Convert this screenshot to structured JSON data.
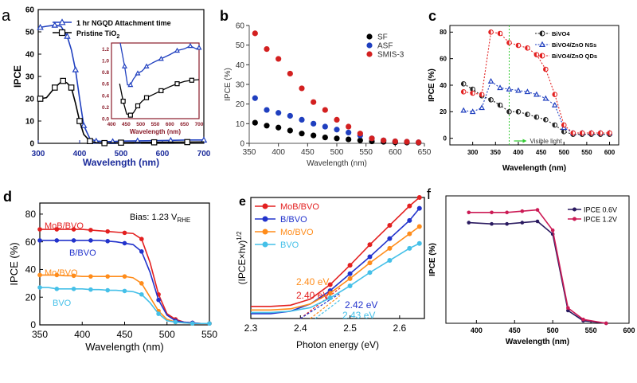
{
  "chart_data": [
    {
      "panel": "a",
      "type": "line",
      "xlabel": "Wavelength (nm)",
      "ylabel": "IPCE",
      "xlim": [
        300,
        700
      ],
      "ylim": [
        0,
        60
      ],
      "xticks": [
        "300",
        "400",
        "500",
        "600",
        "700"
      ],
      "yticks": [
        "0",
        "10",
        "20",
        "30",
        "40",
        "50",
        "60"
      ],
      "legend": "top-right",
      "colors": {
        "series0": "#1f3fbf",
        "series1": "#000000"
      },
      "series": [
        {
          "name": "1 hr NGQD Attachment time",
          "x": [
            305,
            320,
            340,
            355,
            370,
            380,
            390,
            400,
            410,
            425,
            440,
            460,
            480,
            500,
            540,
            580,
            620,
            660,
            700
          ],
          "y": [
            52,
            52.5,
            53,
            52.5,
            48,
            42,
            33,
            20,
            8,
            2,
            1,
            0.8,
            0.8,
            1,
            1.1,
            1.2,
            1.3,
            1.5,
            1.5
          ]
        },
        {
          "name": "Pristine TiO",
          "x": [
            305,
            320,
            340,
            355,
            360,
            370,
            380,
            390,
            400,
            410,
            425,
            440,
            460,
            480,
            500,
            540,
            580,
            620,
            660,
            700
          ],
          "y": [
            20,
            20.5,
            25,
            27.5,
            28,
            27,
            25,
            18,
            10,
            4,
            1,
            0.3,
            0.1,
            0.2,
            0.3,
            0.4,
            0.45,
            0.5,
            0.55,
            0.6
          ]
        }
      ],
      "inset": {
        "xlabel": "Wavelength (nm)",
        "xlim": [
          400,
          700
        ],
        "ylim": [
          0,
          1.3
        ],
        "xticks": [
          "400",
          "450",
          "500",
          "550",
          "600",
          "650",
          "700"
        ],
        "yticks": [
          "0.0",
          "0.2",
          "0.4",
          "0.6",
          "0.8",
          "1.0",
          "1.2"
        ],
        "series": [
          {
            "name": "1 hr NGQD Attachment time",
            "x": [
              430,
              445,
              455,
              465,
              475,
              490,
              505,
              520,
              545,
              570,
              600,
              625,
              650,
              670,
              690,
              700
            ],
            "y": [
              1.3,
              0.9,
              0.58,
              0.58,
              0.68,
              0.78,
              0.82,
              0.9,
              0.97,
              1.03,
              1.1,
              1.17,
              1.2,
              1.25,
              1.2,
              1.22
            ]
          },
          {
            "name": "Pristine TiO",
            "x": [
              428,
              440,
              452,
              465,
              475,
              490,
              505,
              520,
              545,
              570,
              600,
              625,
              650,
              675,
              700
            ],
            "y": [
              0.6,
              0.3,
              0.08,
              0.06,
              0.1,
              0.22,
              0.3,
              0.36,
              0.42,
              0.48,
              0.55,
              0.6,
              0.64,
              0.66,
              0.67
            ]
          }
        ]
      }
    },
    {
      "panel": "b",
      "type": "scatter",
      "xlabel": "Wavelength (nm)",
      "ylabel": "IPCE (%)",
      "xlim": [
        350,
        650
      ],
      "ylim": [
        0,
        60
      ],
      "xticks": [
        "350",
        "400",
        "450",
        "500",
        "550",
        "600",
        "650"
      ],
      "yticks": [
        "0",
        "10",
        "20",
        "30",
        "40",
        "50",
        "60"
      ],
      "legend": "top-right",
      "colors": {
        "SF": "#000000",
        "ASF": "#1f3fbf",
        "SMIS-3": "#d32020"
      },
      "series": [
        {
          "name": "SF",
          "x": [
            360,
            380,
            400,
            420,
            440,
            460,
            480,
            500,
            520,
            540,
            560,
            580,
            600,
            620,
            640
          ],
          "y": [
            10.5,
            9,
            8,
            6.5,
            5,
            4,
            3,
            2.5,
            2,
            1.5,
            1,
            0.8,
            0.5,
            0.4,
            0.3
          ]
        },
        {
          "name": "ASF",
          "x": [
            360,
            380,
            400,
            420,
            440,
            460,
            480,
            500,
            520,
            540,
            560,
            580,
            600,
            620,
            640
          ],
          "y": [
            23,
            17,
            15.5,
            14,
            12,
            10,
            8.5,
            7,
            5.5,
            4,
            2.5,
            1.5,
            1,
            0.8,
            0.5
          ]
        },
        {
          "name": "SMIS-3",
          "x": [
            360,
            380,
            400,
            420,
            440,
            460,
            480,
            500,
            520,
            540,
            560,
            580,
            600,
            620,
            640
          ],
          "y": [
            56,
            48,
            43,
            35.5,
            28,
            21,
            17,
            12,
            8.5,
            5,
            2.5,
            1.5,
            1,
            0.8,
            0.5
          ]
        }
      ]
    },
    {
      "panel": "c",
      "type": "line",
      "xlabel": "Wavelength (nm)",
      "ylabel": "IPCE (%)",
      "xlim": [
        250,
        620
      ],
      "ylim": [
        -5,
        85
      ],
      "xticks": [
        "300",
        "350",
        "400",
        "450",
        "500",
        "550",
        "600"
      ],
      "yticks": [
        "0",
        "20",
        "40",
        "60",
        "80"
      ],
      "annotation": "Visible light",
      "colors": {
        "BiVO4": "#222222",
        "ZnO NSs": "#1f3fbf",
        "ZnO QDs": "#e32020",
        "visible": "#33cc33"
      },
      "series": [
        {
          "name": "BiVO4",
          "x": [
            280,
            300,
            320,
            340,
            360,
            380,
            400,
            420,
            440,
            460,
            480,
            500,
            520,
            540,
            560,
            580,
            600
          ],
          "y": [
            41,
            37,
            32,
            29,
            25,
            20,
            20,
            18,
            16,
            14,
            10,
            5,
            3,
            3,
            3,
            3,
            3
          ]
        },
        {
          "name": "BiVO4/ZnO NSs",
          "x": [
            280,
            300,
            320,
            340,
            360,
            380,
            400,
            420,
            440,
            460,
            480,
            500,
            520,
            540,
            560,
            580,
            600
          ],
          "y": [
            21,
            20,
            23,
            43,
            38,
            37,
            36,
            35,
            33,
            30,
            25,
            8,
            4,
            4,
            4,
            4,
            4
          ]
        },
        {
          "name": "BiVO4/ZnO QDs",
          "x": [
            280,
            300,
            320,
            340,
            360,
            380,
            400,
            420,
            440,
            460,
            480,
            500,
            520,
            540,
            560,
            580,
            600
          ],
          "y": [
            35,
            34,
            33,
            80,
            79,
            72,
            70,
            68,
            63,
            52,
            33,
            10,
            4,
            4,
            4,
            4,
            4
          ]
        }
      ]
    },
    {
      "panel": "d",
      "type": "line",
      "xlabel": "Wavelength (nm)",
      "ylabel": "IPCE (%)",
      "xlim": [
        350,
        550
      ],
      "ylim": [
        0,
        88
      ],
      "xticks": [
        "350",
        "400",
        "450",
        "500",
        "550"
      ],
      "yticks": [
        "0",
        "20",
        "40",
        "60",
        "80"
      ],
      "annotation_prefix": "Bias: 1.23 V",
      "annotation_sub": "RHE",
      "colors": {
        "MoB/BVO": "#e32020",
        "B/BVO": "#2233cc",
        "Mo/BVO": "#ff8c1a",
        "BVO": "#45c0e8"
      },
      "series": [
        {
          "name": "MoB/BVO",
          "x": [
            350,
            360,
            370,
            380,
            390,
            400,
            410,
            420,
            430,
            440,
            450,
            460,
            470,
            480,
            490,
            500,
            510,
            520,
            530,
            540,
            550
          ],
          "y": [
            69,
            69,
            69,
            69,
            69,
            69,
            68.5,
            68,
            67.5,
            67,
            66.5,
            66,
            62,
            45,
            22,
            8,
            4,
            2,
            1.5,
            1,
            1
          ]
        },
        {
          "name": "B/BVO",
          "x": [
            350,
            360,
            370,
            380,
            390,
            400,
            410,
            420,
            430,
            440,
            450,
            460,
            470,
            480,
            490,
            500,
            510,
            520,
            530,
            540,
            550
          ],
          "y": [
            61,
            61,
            61,
            61,
            61,
            61,
            61,
            61,
            60.5,
            60,
            59,
            58,
            53,
            38,
            18,
            7,
            3,
            2,
            1.5,
            1,
            1
          ]
        },
        {
          "name": "Mo/BVO",
          "x": [
            350,
            360,
            370,
            380,
            390,
            400,
            410,
            420,
            430,
            440,
            450,
            460,
            470,
            480,
            490,
            500,
            510,
            520,
            530,
            540,
            550
          ],
          "y": [
            36,
            36,
            36,
            35.5,
            35.5,
            35,
            35,
            35,
            35,
            35,
            35,
            34,
            30,
            20,
            10,
            4,
            2,
            1.5,
            1,
            1,
            1
          ]
        },
        {
          "name": "BVO",
          "x": [
            350,
            360,
            370,
            380,
            390,
            400,
            410,
            420,
            430,
            440,
            450,
            460,
            470,
            480,
            490,
            500,
            510,
            520,
            530,
            540,
            550
          ],
          "y": [
            27,
            27,
            26,
            26,
            26,
            26,
            25.5,
            25.5,
            25,
            25,
            24.5,
            24,
            22,
            16,
            8,
            3,
            2,
            1.5,
            1,
            1,
            1
          ]
        }
      ]
    },
    {
      "panel": "e",
      "type": "line",
      "xlabel": "Photon energy (eV)",
      "ylabel": "(IPCE×hv)",
      "ylabel_sup": "1/2",
      "xlim": [
        2.3,
        2.65
      ],
      "ylim": [
        0,
        1
      ],
      "xticks": [
        "2.3",
        "2.4",
        "2.5",
        "2.6"
      ],
      "annotations": [
        "2.40 eV",
        "2.40 eV",
        "2.42 eV",
        "2.43 eV"
      ],
      "colors": {
        "MoB/BVO": "#e32020",
        "B/BVO": "#2233cc",
        "Mo/BVO": "#ff8c1a",
        "BVO": "#45c0e8"
      },
      "series": [
        {
          "name": "MoB/BVO",
          "x": [
            2.3,
            2.34,
            2.38,
            2.42,
            2.46,
            2.5,
            2.54,
            2.58,
            2.62,
            2.64
          ],
          "y": [
            0.1,
            0.1,
            0.11,
            0.16,
            0.28,
            0.44,
            0.61,
            0.77,
            0.93,
            1.0
          ]
        },
        {
          "name": "B/BVO",
          "x": [
            2.3,
            2.34,
            2.38,
            2.42,
            2.46,
            2.5,
            2.54,
            2.58,
            2.62,
            2.64
          ],
          "y": [
            0.04,
            0.04,
            0.06,
            0.12,
            0.23,
            0.37,
            0.51,
            0.66,
            0.81,
            0.91
          ]
        },
        {
          "name": "Mo/BVO",
          "x": [
            2.3,
            2.34,
            2.38,
            2.42,
            2.46,
            2.5,
            2.54,
            2.58,
            2.62,
            2.64
          ],
          "y": [
            0.07,
            0.07,
            0.08,
            0.12,
            0.21,
            0.33,
            0.46,
            0.58,
            0.7,
            0.76
          ]
        },
        {
          "name": "BVO",
          "x": [
            2.3,
            2.34,
            2.38,
            2.42,
            2.46,
            2.5,
            2.54,
            2.58,
            2.62,
            2.64
          ],
          "y": [
            0.05,
            0.05,
            0.06,
            0.09,
            0.17,
            0.27,
            0.38,
            0.48,
            0.58,
            0.62
          ]
        }
      ]
    },
    {
      "panel": "f",
      "type": "line",
      "xlabel": "Wavelength (nm)",
      "ylabel": "IPCE (%)",
      "xlim": [
        360,
        600
      ],
      "ylim": [
        0,
        100
      ],
      "xticks": [
        "400",
        "450",
        "500",
        "550",
        "600"
      ],
      "legend": "top-right",
      "colors": {
        "IPCE 0.6V": "#2a1a60",
        "IPCE 1.2V": "#cc1a55"
      },
      "series": [
        {
          "name": "IPCE 0.6V",
          "x": [
            390,
            420,
            440,
            460,
            480,
            500,
            520,
            540,
            570
          ],
          "y": [
            79,
            78,
            78,
            79,
            80,
            70,
            10,
            2,
            0
          ]
        },
        {
          "name": "IPCE 1.2V",
          "x": [
            390,
            420,
            440,
            460,
            480,
            500,
            520,
            540,
            570
          ],
          "y": [
            87,
            87,
            87,
            88,
            89,
            73,
            12,
            3,
            0
          ]
        }
      ]
    }
  ],
  "labels": {
    "a": "a",
    "b": "b",
    "c": "c",
    "d": "d",
    "e": "e",
    "f": "f"
  }
}
